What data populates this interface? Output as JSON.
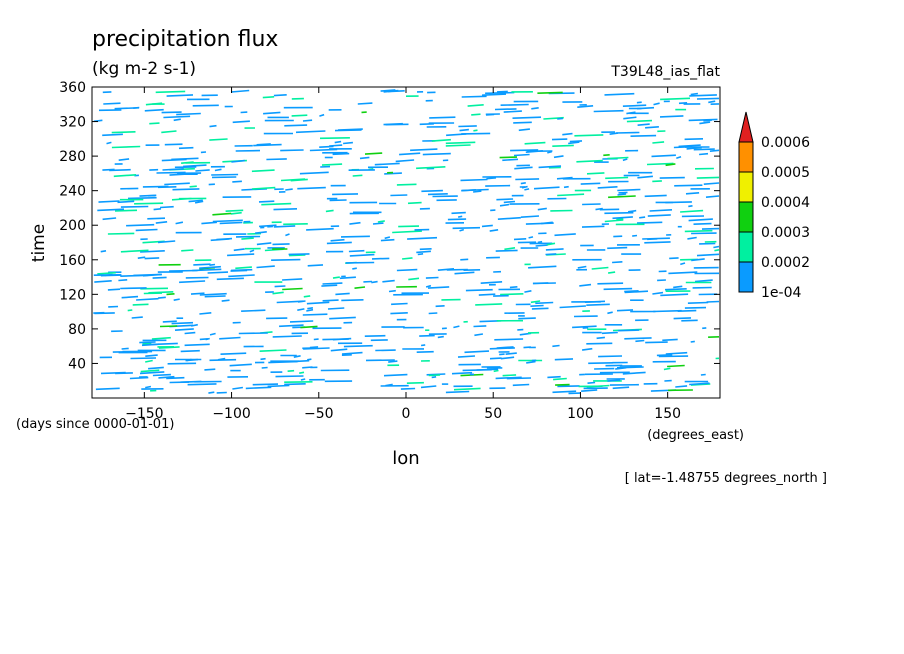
{
  "chart_data": {
    "type": "heatmap",
    "title": "precipitation flux",
    "subtitle": "(kg m-2 s-1)",
    "run_label": "T39L48_ias_flat",
    "xlabel": "lon",
    "x_units": "(degrees_east)",
    "ylabel": "time",
    "y_units": "(days since 0000-01-01)",
    "footer": "[ lat=-1.48755 degrees_north ]",
    "xlim": [
      -180,
      180
    ],
    "ylim": [
      0,
      360
    ],
    "x_ticks": [
      -150,
      -100,
      -50,
      0,
      50,
      100,
      150
    ],
    "x_tick_labels": [
      "−150",
      "−100",
      "−50",
      "0",
      "50",
      "100",
      "150"
    ],
    "y_ticks": [
      40,
      80,
      120,
      160,
      200,
      240,
      280,
      320,
      360
    ],
    "y_tick_labels": [
      "40",
      "80",
      "120",
      "160",
      "200",
      "240",
      "280",
      "320",
      "360"
    ],
    "colorbar": {
      "levels": [
        0.0001,
        0.0002,
        0.0003,
        0.0004,
        0.0005,
        0.0006
      ],
      "level_labels": [
        "1e-04",
        "0.0002",
        "0.0003",
        "0.0004",
        "0.0005",
        "0.0006"
      ],
      "colors": [
        "#0a9bff",
        "#00f0a0",
        "#10d010",
        "#f0f000",
        "#ff9000"
      ],
      "extend_color": "#e02020"
    },
    "description_colors": {
      "frame": "#000000",
      "background": "#ffffff"
    }
  }
}
